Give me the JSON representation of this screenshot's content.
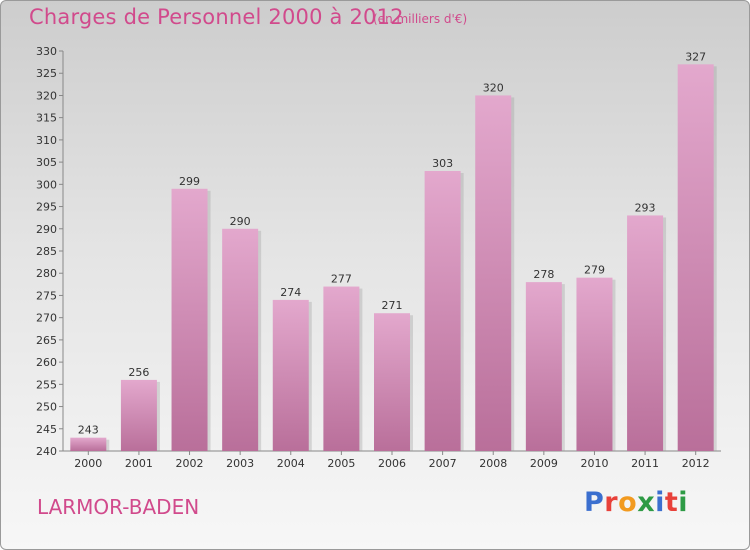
{
  "header": {
    "title": "Charges de Personnel 2000 à 2012",
    "subtitle": "(en milliers d'€)"
  },
  "footer": {
    "commune": "LARMOR-BADEN",
    "brand": "Proxiti",
    "brand_colors": [
      "#3b6fcf",
      "#e8413a",
      "#f29a1f",
      "#2e9b45",
      "#3b6fcf",
      "#e8413a",
      "#2e9b45"
    ]
  },
  "colors": {
    "bar_top": "#e3a8cd",
    "bar_bottom": "#b96f9a",
    "accent": "#d14a8c"
  },
  "chart_data": {
    "type": "bar",
    "categories": [
      "2000",
      "2001",
      "2002",
      "2003",
      "2004",
      "2005",
      "2006",
      "2007",
      "2008",
      "2009",
      "2010",
      "2011",
      "2012"
    ],
    "values": [
      243,
      256,
      299,
      290,
      274,
      277,
      271,
      303,
      320,
      278,
      279,
      293,
      327
    ],
    "ylim": [
      240,
      330
    ],
    "yticks": [
      240,
      245,
      250,
      255,
      260,
      265,
      270,
      275,
      280,
      285,
      290,
      295,
      300,
      305,
      310,
      315,
      320,
      325,
      330
    ],
    "grid": false
  }
}
